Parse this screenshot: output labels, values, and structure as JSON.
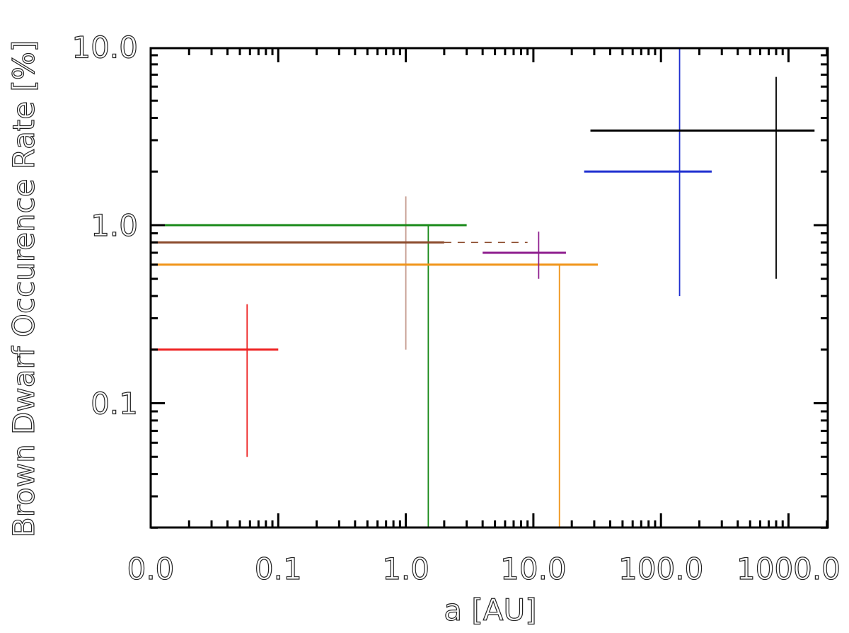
{
  "chart_data": {
    "type": "scatter",
    "title": "",
    "xlabel": "a [AU]",
    "ylabel": "Brown Dwarf Occurence Rate [%]",
    "xscale": "log",
    "yscale": "log",
    "xlim": [
      0.01,
      2000
    ],
    "ylim": [
      0.02,
      11
    ],
    "x_tick_labels": [
      {
        "value": 0.01,
        "label": "0.0"
      },
      {
        "value": 0.1,
        "label": "0.1"
      },
      {
        "value": 1,
        "label": "1.0"
      },
      {
        "value": 10,
        "label": "10.0"
      },
      {
        "value": 100,
        "label": "100.0"
      },
      {
        "value": 1000,
        "label": "1000.0"
      }
    ],
    "y_tick_labels": [
      {
        "value": 0.1,
        "label": "0.1"
      },
      {
        "value": 1,
        "label": "1.0"
      },
      {
        "value": 10,
        "label": "10.0"
      }
    ],
    "grid": false,
    "legend": null,
    "series": [
      {
        "color": "#ee2222",
        "x_range": [
          0.01,
          0.1
        ],
        "y": 0.2,
        "x_err_at": 0.057,
        "y_range": [
          0.05,
          0.36
        ],
        "style": "solid"
      },
      {
        "color": "#c49a8e",
        "x_range": null,
        "y": null,
        "x_err_at": 1.0,
        "y_range": [
          0.2,
          1.45
        ],
        "style": "solid"
      },
      {
        "color": "#1a8a1a",
        "x_range": [
          0.01,
          3.0
        ],
        "y": 1.0,
        "x_err_at": 1.5,
        "y_range": [
          0.02,
          1.0
        ],
        "style": "solid"
      },
      {
        "color": "#8b4a2b",
        "x_range": [
          0.01,
          2.0
        ],
        "y": 0.8,
        "x_err_at": null,
        "y_range": null,
        "style": "solid"
      },
      {
        "color": "#8b4a2b",
        "x_range": [
          2.0,
          9.0
        ],
        "y": 0.8,
        "x_err_at": null,
        "y_range": null,
        "style": "dashed"
      },
      {
        "color": "#f09418",
        "x_range": [
          0.01,
          32
        ],
        "y": 0.6,
        "x_err_at": 16,
        "y_range": [
          0.02,
          0.6
        ],
        "style": "solid"
      },
      {
        "color": "#8e1e8e",
        "x_range": [
          4.0,
          18
        ],
        "y": 0.7,
        "x_err_at": 11,
        "y_range": [
          0.5,
          0.92
        ],
        "style": "solid"
      },
      {
        "color": "#1f2fd0",
        "x_range": [
          25,
          250
        ],
        "y": 2.0,
        "x_err_at": 140,
        "y_range": [
          0.4,
          11
        ],
        "style": "solid"
      },
      {
        "color": "#000000",
        "x_range": [
          28,
          1600
        ],
        "y": 3.4,
        "x_err_at": 800,
        "y_range": [
          0.5,
          6.8
        ],
        "style": "solid"
      }
    ]
  }
}
